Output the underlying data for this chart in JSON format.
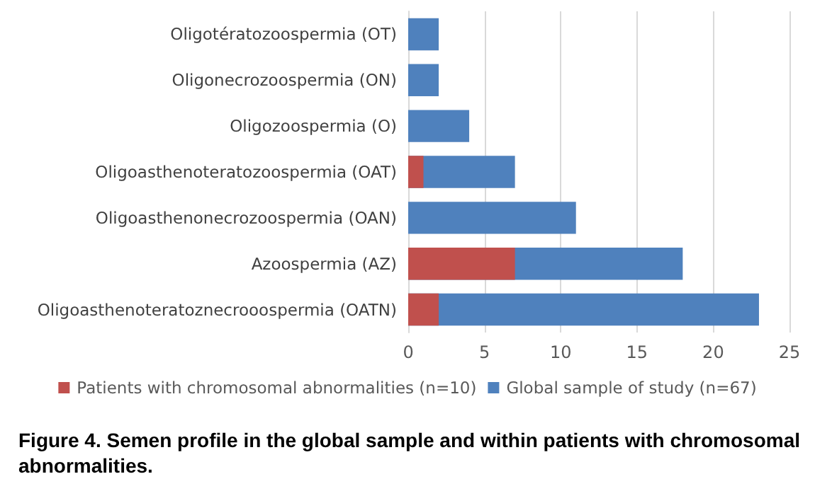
{
  "chart_data": {
    "type": "bar",
    "orientation": "horizontal",
    "title": "Figure 4. Semen profile in the global sample and within patients with chromosomal abnormalities.",
    "categories": [
      "Oligotératozoospermia (OT)",
      "Oligonecrozoospermia (ON)",
      "Oligozoospermia (O)",
      "Oligoasthenoteratozoospermia (OAT)",
      "Oligoasthenonecrozoospermia (OAN)",
      "Azoospermia (AZ)",
      "Oligoasthenoteratoznecrooospermia (OATN)"
    ],
    "series": [
      {
        "name": "Patients with chromosomal abnormalities (n=10)",
        "color": "#c0504d",
        "values": [
          0,
          0,
          0,
          1,
          0,
          7,
          2
        ]
      },
      {
        "name": "Global sample of study (n=67)",
        "color": "#4f81bd",
        "values": [
          2,
          2,
          4,
          7,
          11,
          18,
          23
        ]
      }
    ],
    "xlim": [
      0,
      25
    ],
    "xticks": [
      0,
      5,
      10,
      15,
      20,
      25
    ],
    "grid": "x",
    "legend": "bottom"
  }
}
